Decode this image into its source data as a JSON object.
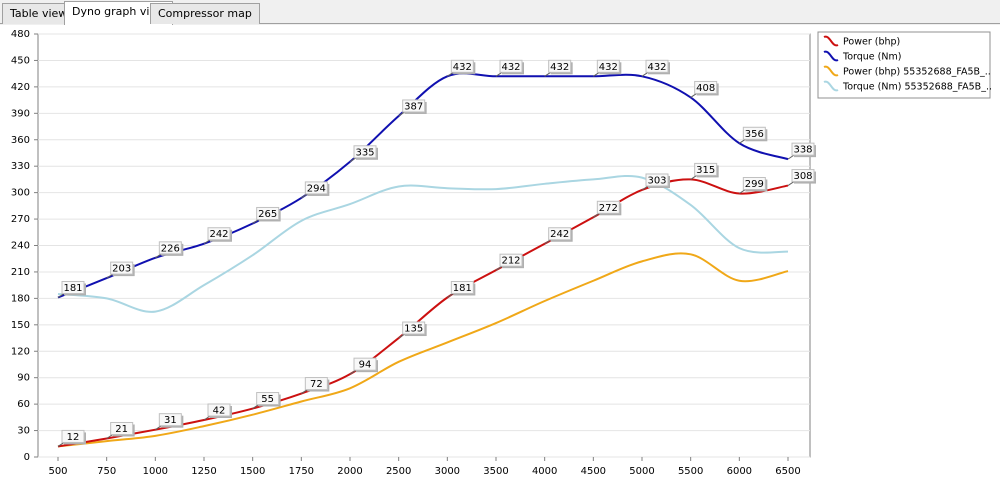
{
  "tabs": [
    "Table view",
    "Dyno graph view",
    "Compressor map"
  ],
  "active_tab": 1,
  "chart_data": {
    "type": "line",
    "categories": [
      500,
      750,
      1000,
      1250,
      1500,
      1750,
      2000,
      2500,
      3000,
      3500,
      4000,
      4500,
      5000,
      5500,
      6000,
      6500
    ],
    "ylim": [
      0,
      480
    ],
    "yticks": [
      0,
      30,
      60,
      90,
      120,
      150,
      180,
      210,
      240,
      270,
      300,
      330,
      360,
      390,
      420,
      450,
      480
    ],
    "grid": true,
    "legend": "top-right",
    "series": [
      {
        "name": "Power (bhp)",
        "color": "#cc1010",
        "labels": true,
        "values": [
          12,
          21,
          31,
          42,
          55,
          72,
          94,
          135,
          181,
          212,
          242,
          272,
          303,
          315,
          299,
          308
        ]
      },
      {
        "name": "Torque (Nm)",
        "color": "#1010b0",
        "labels": true,
        "values": [
          181,
          203,
          226,
          242,
          265,
          294,
          335,
          387,
          432,
          432,
          432,
          432,
          432,
          408,
          356,
          338
        ]
      },
      {
        "name": "Power (bhp) 55352688_FA5B_..",
        "color": "#f0a818",
        "labels": false,
        "values": [
          12,
          18,
          24,
          35,
          48,
          63,
          78,
          108,
          130,
          152,
          177,
          200,
          222,
          230,
          200,
          211
        ]
      },
      {
        "name": "Torque (Nm) 55352688_FA5B_..",
        "color": "#aad6e2",
        "labels": false,
        "values": [
          185,
          180,
          165,
          195,
          229,
          268,
          287,
          307,
          305,
          304,
          310,
          315,
          317,
          286,
          237,
          233
        ]
      }
    ]
  }
}
